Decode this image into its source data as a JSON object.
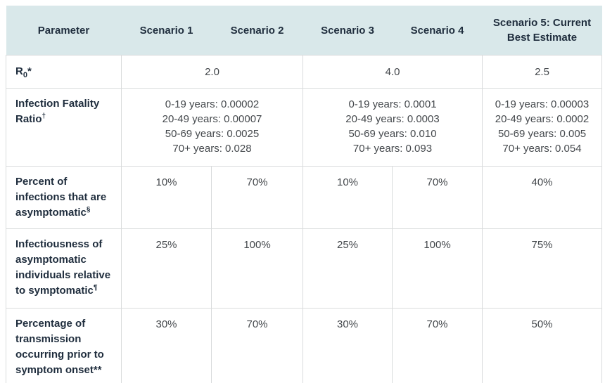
{
  "colors": {
    "header_background": "#d9e8ea",
    "header_text": "#1f2d3d",
    "body_text": "#44484c",
    "border": "#d9dbdc"
  },
  "table": {
    "columns": [
      "Parameter",
      "Scenario 1",
      "Scenario 2",
      "Scenario 3",
      "Scenario 4",
      "Scenario 5: Current Best Estimate"
    ],
    "rows": [
      {
        "id": "r0",
        "param": {
          "base": "R",
          "sub": "0",
          "suffix": "*"
        },
        "cells": [
          {
            "span": 2,
            "lines": [
              "2.0"
            ]
          },
          {
            "span": 2,
            "lines": [
              "4.0"
            ]
          },
          {
            "span": 1,
            "lines": [
              "2.5"
            ]
          }
        ]
      },
      {
        "id": "infection-fatality-ratio",
        "param": {
          "base": "Infection Fatality Ratio",
          "sup": "†"
        },
        "cells": [
          {
            "span": 2,
            "lines": [
              "0-19 years: 0.00002",
              "20-49 years: 0.00007",
              "50-69 years: 0.0025",
              "70+ years: 0.028"
            ]
          },
          {
            "span": 2,
            "lines": [
              "0-19 years: 0.0001",
              "20-49 years: 0.0003",
              "50-69 years: 0.010",
              "70+ years: 0.093"
            ]
          },
          {
            "span": 1,
            "lines": [
              "0-19 years: 0.00003",
              "20-49 years: 0.0002",
              "50-69 years: 0.005",
              "70+ years: 0.054"
            ]
          }
        ]
      },
      {
        "id": "percent-infections-asymptomatic",
        "param": {
          "base": "Percent of infections that are asymptomatic",
          "sup": "§"
        },
        "cells": [
          {
            "span": 1,
            "lines": [
              "10%"
            ]
          },
          {
            "span": 1,
            "lines": [
              "70%"
            ]
          },
          {
            "span": 1,
            "lines": [
              "10%"
            ]
          },
          {
            "span": 1,
            "lines": [
              "70%"
            ]
          },
          {
            "span": 1,
            "lines": [
              "40%"
            ]
          }
        ]
      },
      {
        "id": "infectiousness-asymptomatic",
        "param": {
          "base": "Infectiousness of asymptomatic individuals relative to symptomatic",
          "sup": "¶"
        },
        "cells": [
          {
            "span": 1,
            "lines": [
              "25%"
            ]
          },
          {
            "span": 1,
            "lines": [
              "100%"
            ]
          },
          {
            "span": 1,
            "lines": [
              "25%"
            ]
          },
          {
            "span": 1,
            "lines": [
              "100%"
            ]
          },
          {
            "span": 1,
            "lines": [
              "75%"
            ]
          }
        ]
      },
      {
        "id": "presymptomatic-transmission",
        "param": {
          "base": "Percentage of transmission occurring prior to symptom onset",
          "suffix": "**"
        },
        "cells": [
          {
            "span": 1,
            "lines": [
              "30%"
            ]
          },
          {
            "span": 1,
            "lines": [
              "70%"
            ]
          },
          {
            "span": 1,
            "lines": [
              "30%"
            ]
          },
          {
            "span": 1,
            "lines": [
              "70%"
            ]
          },
          {
            "span": 1,
            "lines": [
              "50%"
            ]
          }
        ]
      }
    ]
  }
}
